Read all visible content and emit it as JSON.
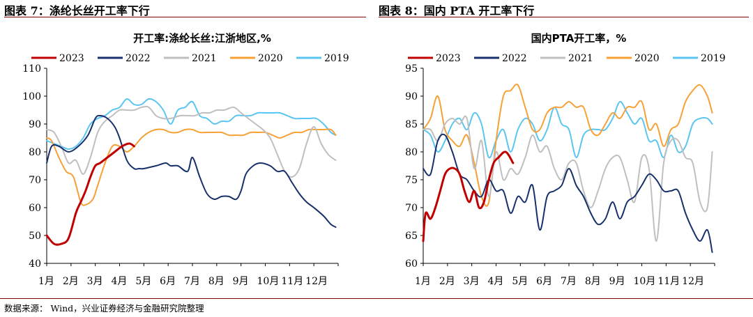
{
  "figures": [
    {
      "label": "图表 7：涤纶长丝开工率下行"
    },
    {
      "label": "图表 8：国内 PTA 开工率下行"
    }
  ],
  "source_note": "数据来源：  Wind，兴业证券经济与金融研究院整理",
  "chart_data": [
    {
      "type": "line",
      "title": "开工率:涤纶长丝:江浙地区,%",
      "ylim": [
        40,
        110
      ],
      "yticks": [
        40,
        50,
        60,
        70,
        80,
        90,
        100,
        110
      ],
      "month_labels": [
        "1月",
        "2月",
        "3月",
        "4月",
        "5月",
        "6月",
        "7月",
        "8月",
        "9月",
        "10月",
        "11月",
        "12月"
      ],
      "xlim": [
        1,
        13
      ],
      "legend_position": "top",
      "series": [
        {
          "name": "2023",
          "color": "#c00000",
          "width": 3,
          "x": [
            1.0,
            1.3,
            1.6,
            1.9,
            2.2,
            2.4,
            2.6,
            2.8,
            3.0,
            3.2,
            3.5,
            3.8,
            4.1,
            4.4,
            4.6
          ],
          "y": [
            50,
            47,
            47,
            49,
            58,
            62,
            66,
            71,
            75,
            76,
            78,
            80,
            82,
            83,
            82
          ]
        },
        {
          "name": "2022",
          "color": "#17306b",
          "width": 2,
          "x": [
            1.0,
            1.2,
            1.5,
            1.9,
            2.3,
            2.7,
            3.0,
            3.2,
            3.5,
            3.8,
            4.0,
            4.3,
            4.6,
            4.8,
            5.0,
            5.5,
            5.9,
            6.1,
            6.4,
            6.8,
            7.0,
            7.3,
            7.6,
            7.9,
            8.2,
            8.5,
            8.8,
            9.0,
            9.2,
            9.5,
            9.8,
            10.2,
            10.5,
            10.8,
            11.1,
            11.4,
            11.7,
            12.0,
            12.4,
            12.7,
            12.9
          ],
          "y": [
            76,
            82,
            82,
            80,
            82,
            86,
            92,
            93,
            92,
            89,
            85,
            77,
            74,
            74,
            74,
            75,
            76,
            75,
            75,
            73,
            78,
            71,
            65,
            63,
            64,
            64,
            63,
            66,
            72,
            75,
            76,
            75,
            73,
            73,
            69,
            65,
            62,
            60,
            57,
            54,
            53
          ]
        },
        {
          "name": "2021",
          "color": "#bfbfbf",
          "width": 2,
          "x": [
            1.0,
            1.3,
            1.6,
            1.9,
            2.2,
            2.5,
            2.8,
            3.1,
            3.4,
            3.7,
            4.0,
            4.3,
            4.6,
            4.9,
            5.2,
            5.5,
            5.8,
            6.1,
            6.5,
            6.8,
            7.1,
            7.4,
            7.7,
            8.0,
            8.3,
            8.7,
            9.0,
            9.3,
            9.6,
            9.9,
            10.2,
            10.5,
            10.8,
            11.1,
            11.4,
            11.7,
            12.0,
            12.3,
            12.6,
            12.9
          ],
          "y": [
            88,
            87,
            82,
            76,
            77,
            72,
            78,
            87,
            91,
            93,
            95,
            95,
            95,
            96,
            96,
            93,
            92,
            92,
            93,
            93,
            93,
            94,
            94,
            95,
            95,
            96,
            94,
            92,
            90,
            88,
            85,
            79,
            73,
            71,
            74,
            83,
            89,
            83,
            79,
            77
          ]
        },
        {
          "name": "2020",
          "color": "#f7a035",
          "width": 2,
          "x": [
            1.0,
            1.2,
            1.5,
            1.8,
            2.1,
            2.4,
            2.6,
            2.9,
            3.1,
            3.4,
            3.7,
            4.0,
            4.3,
            4.6,
            4.9,
            5.2,
            5.5,
            5.8,
            6.1,
            6.4,
            6.7,
            7.0,
            7.3,
            7.6,
            7.9,
            8.2,
            8.5,
            8.8,
            9.1,
            9.4,
            9.7,
            10.0,
            10.3,
            10.6,
            10.9,
            11.2,
            11.5,
            11.8,
            12.1,
            12.4,
            12.7,
            12.9
          ],
          "y": [
            85,
            84,
            78,
            73,
            71,
            62,
            61,
            63,
            68,
            76,
            82,
            82,
            80,
            82,
            85,
            87,
            88,
            88,
            87,
            87,
            88,
            88,
            87,
            87,
            87,
            87,
            86,
            86,
            86,
            87,
            87,
            87,
            86,
            85,
            86,
            87,
            87,
            88,
            88,
            88,
            88,
            86
          ]
        },
        {
          "name": "2019",
          "color": "#5bc5f2",
          "width": 2,
          "x": [
            1.0,
            1.3,
            1.6,
            1.9,
            2.2,
            2.5,
            2.8,
            3.1,
            3.4,
            3.7,
            4.0,
            4.3,
            4.6,
            4.9,
            5.2,
            5.5,
            5.8,
            6.1,
            6.4,
            6.7,
            7.0,
            7.3,
            7.6,
            7.9,
            8.2,
            8.5,
            8.8,
            9.1,
            9.4,
            9.7,
            10.0,
            10.3,
            10.6,
            10.9,
            11.2,
            11.5,
            11.8,
            12.1,
            12.4,
            12.7,
            12.9
          ],
          "y": [
            84,
            83,
            82,
            81,
            82,
            85,
            90,
            92,
            93,
            95,
            96,
            99,
            97,
            97,
            99,
            98,
            95,
            90,
            95,
            96,
            98,
            93,
            92,
            90,
            91,
            91,
            93,
            93,
            93,
            94,
            94,
            94,
            94,
            93,
            92,
            92,
            92,
            92,
            90,
            87,
            86
          ]
        }
      ]
    },
    {
      "type": "line",
      "title": "国内PTA开工率，%",
      "ylim": [
        60,
        95
      ],
      "yticks": [
        60,
        65,
        70,
        75,
        80,
        85,
        90,
        95
      ],
      "month_labels": [
        "1月",
        "2月",
        "3月",
        "4月",
        "5月",
        "6月",
        "7月",
        "8月",
        "9月",
        "10月",
        "11月",
        "12月"
      ],
      "xlim": [
        1,
        13
      ],
      "legend_position": "top",
      "series": [
        {
          "name": "2023",
          "color": "#c00000",
          "width": 3,
          "x": [
            1.0,
            1.1,
            1.3,
            1.5,
            1.7,
            1.9,
            2.1,
            2.3,
            2.5,
            2.7,
            2.9,
            3.1,
            3.3,
            3.5,
            3.7,
            3.9,
            4.1,
            4.4,
            4.7
          ],
          "y": [
            64,
            69,
            68,
            70,
            73,
            76,
            77,
            77,
            76,
            73,
            71,
            73,
            70,
            71,
            75,
            78,
            79,
            80,
            78
          ]
        },
        {
          "name": "2022",
          "color": "#17306b",
          "width": 2,
          "x": [
            1.0,
            1.3,
            1.6,
            1.9,
            2.2,
            2.5,
            2.8,
            3.1,
            3.4,
            3.7,
            4.0,
            4.3,
            4.6,
            4.9,
            5.2,
            5.5,
            5.8,
            6.1,
            6.4,
            6.7,
            7.0,
            7.3,
            7.6,
            7.9,
            8.2,
            8.5,
            8.8,
            9.1,
            9.4,
            9.7,
            10.0,
            10.3,
            10.6,
            10.9,
            11.2,
            11.5,
            11.8,
            12.1,
            12.4,
            12.7,
            12.9
          ],
          "y": [
            77,
            76,
            82,
            83,
            80,
            76,
            75,
            73,
            72,
            75,
            73,
            73,
            69,
            72,
            71,
            74,
            66,
            72,
            73,
            74,
            77,
            74,
            72,
            69,
            67,
            68,
            71,
            68,
            71,
            72,
            74,
            76,
            75,
            73,
            73,
            73,
            69,
            66,
            64,
            66,
            62
          ]
        },
        {
          "name": "2021",
          "color": "#bfbfbf",
          "width": 2,
          "x": [
            1.0,
            1.3,
            1.6,
            1.9,
            2.2,
            2.5,
            2.8,
            3.1,
            3.4,
            3.7,
            4.0,
            4.3,
            4.6,
            4.9,
            5.2,
            5.5,
            5.8,
            6.1,
            6.4,
            6.7,
            7.0,
            7.3,
            7.6,
            7.9,
            8.2,
            8.5,
            8.8,
            9.1,
            9.4,
            9.7,
            10.0,
            10.3,
            10.6,
            10.9,
            11.2,
            11.5,
            11.8,
            12.1,
            12.4,
            12.7,
            12.9
          ],
          "y": [
            84,
            84,
            82,
            85,
            86,
            85,
            86,
            77,
            82,
            72,
            80,
            75,
            77,
            76,
            79,
            83,
            80,
            81,
            77,
            75,
            78,
            78,
            73,
            70,
            73,
            77,
            79,
            79,
            75,
            71,
            79,
            77,
            64,
            78,
            82,
            82,
            79,
            78,
            71,
            70,
            80
          ]
        },
        {
          "name": "2020",
          "color": "#f7a035",
          "width": 2,
          "x": [
            1.0,
            1.3,
            1.6,
            1.9,
            2.2,
            2.5,
            2.8,
            3.1,
            3.4,
            3.7,
            4.0,
            4.3,
            4.6,
            4.9,
            5.2,
            5.5,
            5.8,
            6.1,
            6.4,
            6.7,
            7.0,
            7.3,
            7.6,
            7.9,
            8.2,
            8.5,
            8.8,
            9.1,
            9.4,
            9.7,
            10.0,
            10.3,
            10.6,
            10.9,
            11.2,
            11.5,
            11.8,
            12.1,
            12.4,
            12.7,
            12.9
          ],
          "y": [
            84,
            86,
            90,
            84,
            82,
            81,
            83,
            78,
            72,
            71,
            82,
            90,
            91,
            92,
            88,
            84,
            84,
            87,
            88,
            88,
            89,
            88,
            88,
            84,
            83,
            85,
            87,
            86,
            88,
            88,
            89,
            84,
            85,
            81,
            84,
            85,
            89,
            91,
            92,
            90,
            87
          ]
        },
        {
          "name": "2019",
          "color": "#5bc5f2",
          "width": 2,
          "x": [
            1.0,
            1.3,
            1.6,
            1.9,
            2.2,
            2.5,
            2.8,
            3.1,
            3.4,
            3.7,
            4.0,
            4.3,
            4.6,
            4.9,
            5.2,
            5.5,
            5.8,
            6.1,
            6.4,
            6.7,
            7.0,
            7.3,
            7.6,
            7.9,
            8.2,
            8.5,
            8.8,
            9.1,
            9.4,
            9.7,
            10.0,
            10.3,
            10.6,
            10.9,
            11.2,
            11.5,
            11.8,
            12.1,
            12.4,
            12.7,
            12.9
          ],
          "y": [
            84,
            83,
            80,
            82,
            85,
            86,
            84,
            87,
            85,
            79,
            82,
            84,
            80,
            84,
            86,
            85,
            82,
            84,
            88,
            85,
            84,
            79,
            83,
            84,
            84,
            84,
            86,
            89,
            87,
            85,
            86,
            82,
            82,
            79,
            83,
            80,
            81,
            85,
            86,
            86,
            85
          ]
        }
      ]
    }
  ]
}
